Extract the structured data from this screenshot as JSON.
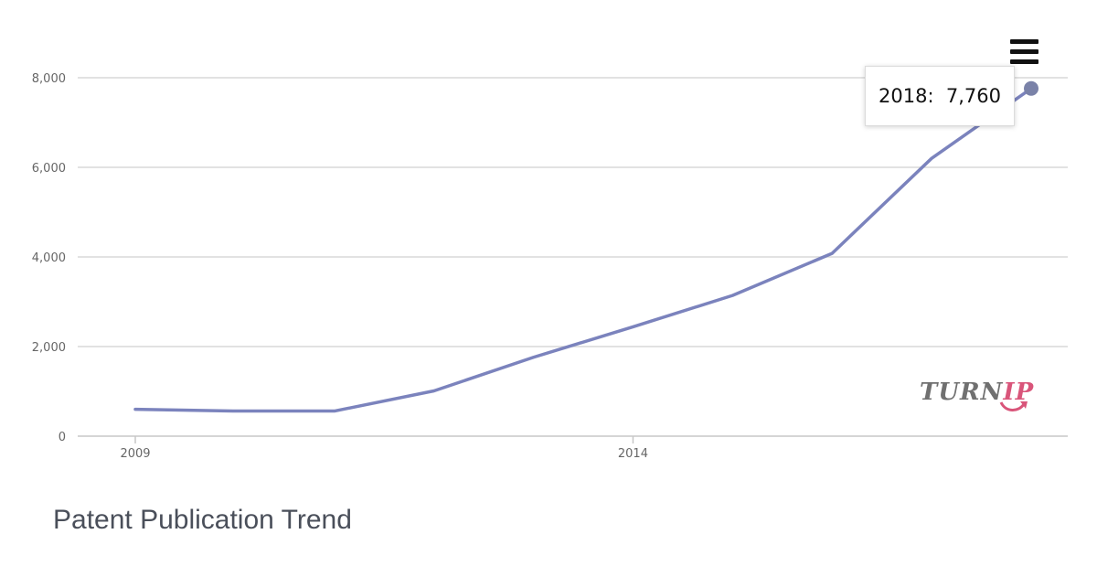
{
  "chart_data": {
    "type": "line",
    "title": "Patent Publication Trend",
    "xlabel": "",
    "ylabel": "",
    "x": [
      2009,
      2010,
      2011,
      2012,
      2013,
      2014,
      2015,
      2016,
      2017,
      2018
    ],
    "series": [
      {
        "values": [
          600,
          560,
          560,
          1010,
          1760,
          2440,
          3140,
          4080,
          6200,
          7760
        ]
      }
    ],
    "xlim": [
      2009,
      2018
    ],
    "ylim": [
      0,
      8000
    ],
    "x_ticks": [
      "2009",
      "2014"
    ],
    "y_ticks": [
      "0",
      "2,000",
      "4,000",
      "6,000",
      "8,000"
    ],
    "grid": true,
    "legend": "none",
    "tooltip": {
      "text": "2018:  7,760"
    },
    "colors": {
      "line": "#7b83bd",
      "marker": "#7a82a8",
      "grid": "#d9d9d9",
      "axis": "#c7c7c7"
    }
  },
  "watermark": {
    "part1": "TURN",
    "part2": "IP"
  },
  "menu": {
    "icon": "hamburger-menu-icon"
  }
}
